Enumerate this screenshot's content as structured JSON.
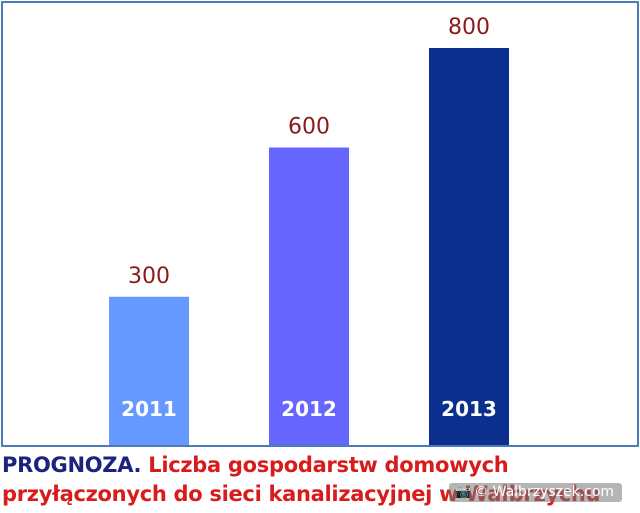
{
  "chart_data": {
    "type": "bar",
    "categories": [
      "2011",
      "2012",
      "2013"
    ],
    "values": [
      300,
      600,
      800
    ],
    "colors": [
      "#6699ff",
      "#6666ff",
      "#0a2f8f"
    ],
    "ylim": [
      0,
      1000
    ],
    "grid": false,
    "legend": "none"
  },
  "caption": {
    "prefix": "PROGNOZA.",
    "line1": "Liczba gospodarstw domowych",
    "line2": "przyłączonych do sieci kanalizacyjnej w Wałbrzychu"
  },
  "watermark": {
    "text": "© Walbrzyszek.com",
    "icon": "camera-icon"
  },
  "colors": {
    "frame_border": "#4a7ab8",
    "value_label": "#8b1a1a",
    "caption_prefix": "#1a237e",
    "caption_text": "#d81b1b"
  }
}
